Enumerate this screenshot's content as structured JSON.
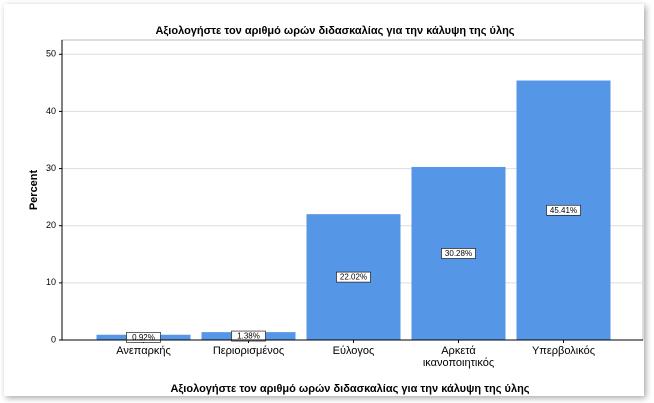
{
  "chart_data": {
    "type": "bar",
    "title": "Αξιολογήστε τον αριθμό ωρών διδασκαλίας για την κάλυψη της ύλης",
    "x_label": "Αξιολογήστε τον αριθμό ωρών διδασκαλίας για την κάλυψη της ύλης",
    "y_label": "Percent",
    "categories": [
      "Ανεπαρκής",
      "Περιορισμένος",
      "Εύλογος",
      "Αρκετά ικανοποιητικός",
      "Υπερβολικός"
    ],
    "values": [
      0.92,
      1.38,
      22.02,
      30.28,
      45.41
    ],
    "value_labels": [
      "0.92%",
      "1.38%",
      "22.02%",
      "30.28%",
      "45.41%"
    ],
    "color": "#5596e6",
    "ylim": [
      0,
      52.5
    ],
    "yticks": [
      0,
      10,
      20,
      30,
      40,
      50
    ],
    "grid": true
  }
}
